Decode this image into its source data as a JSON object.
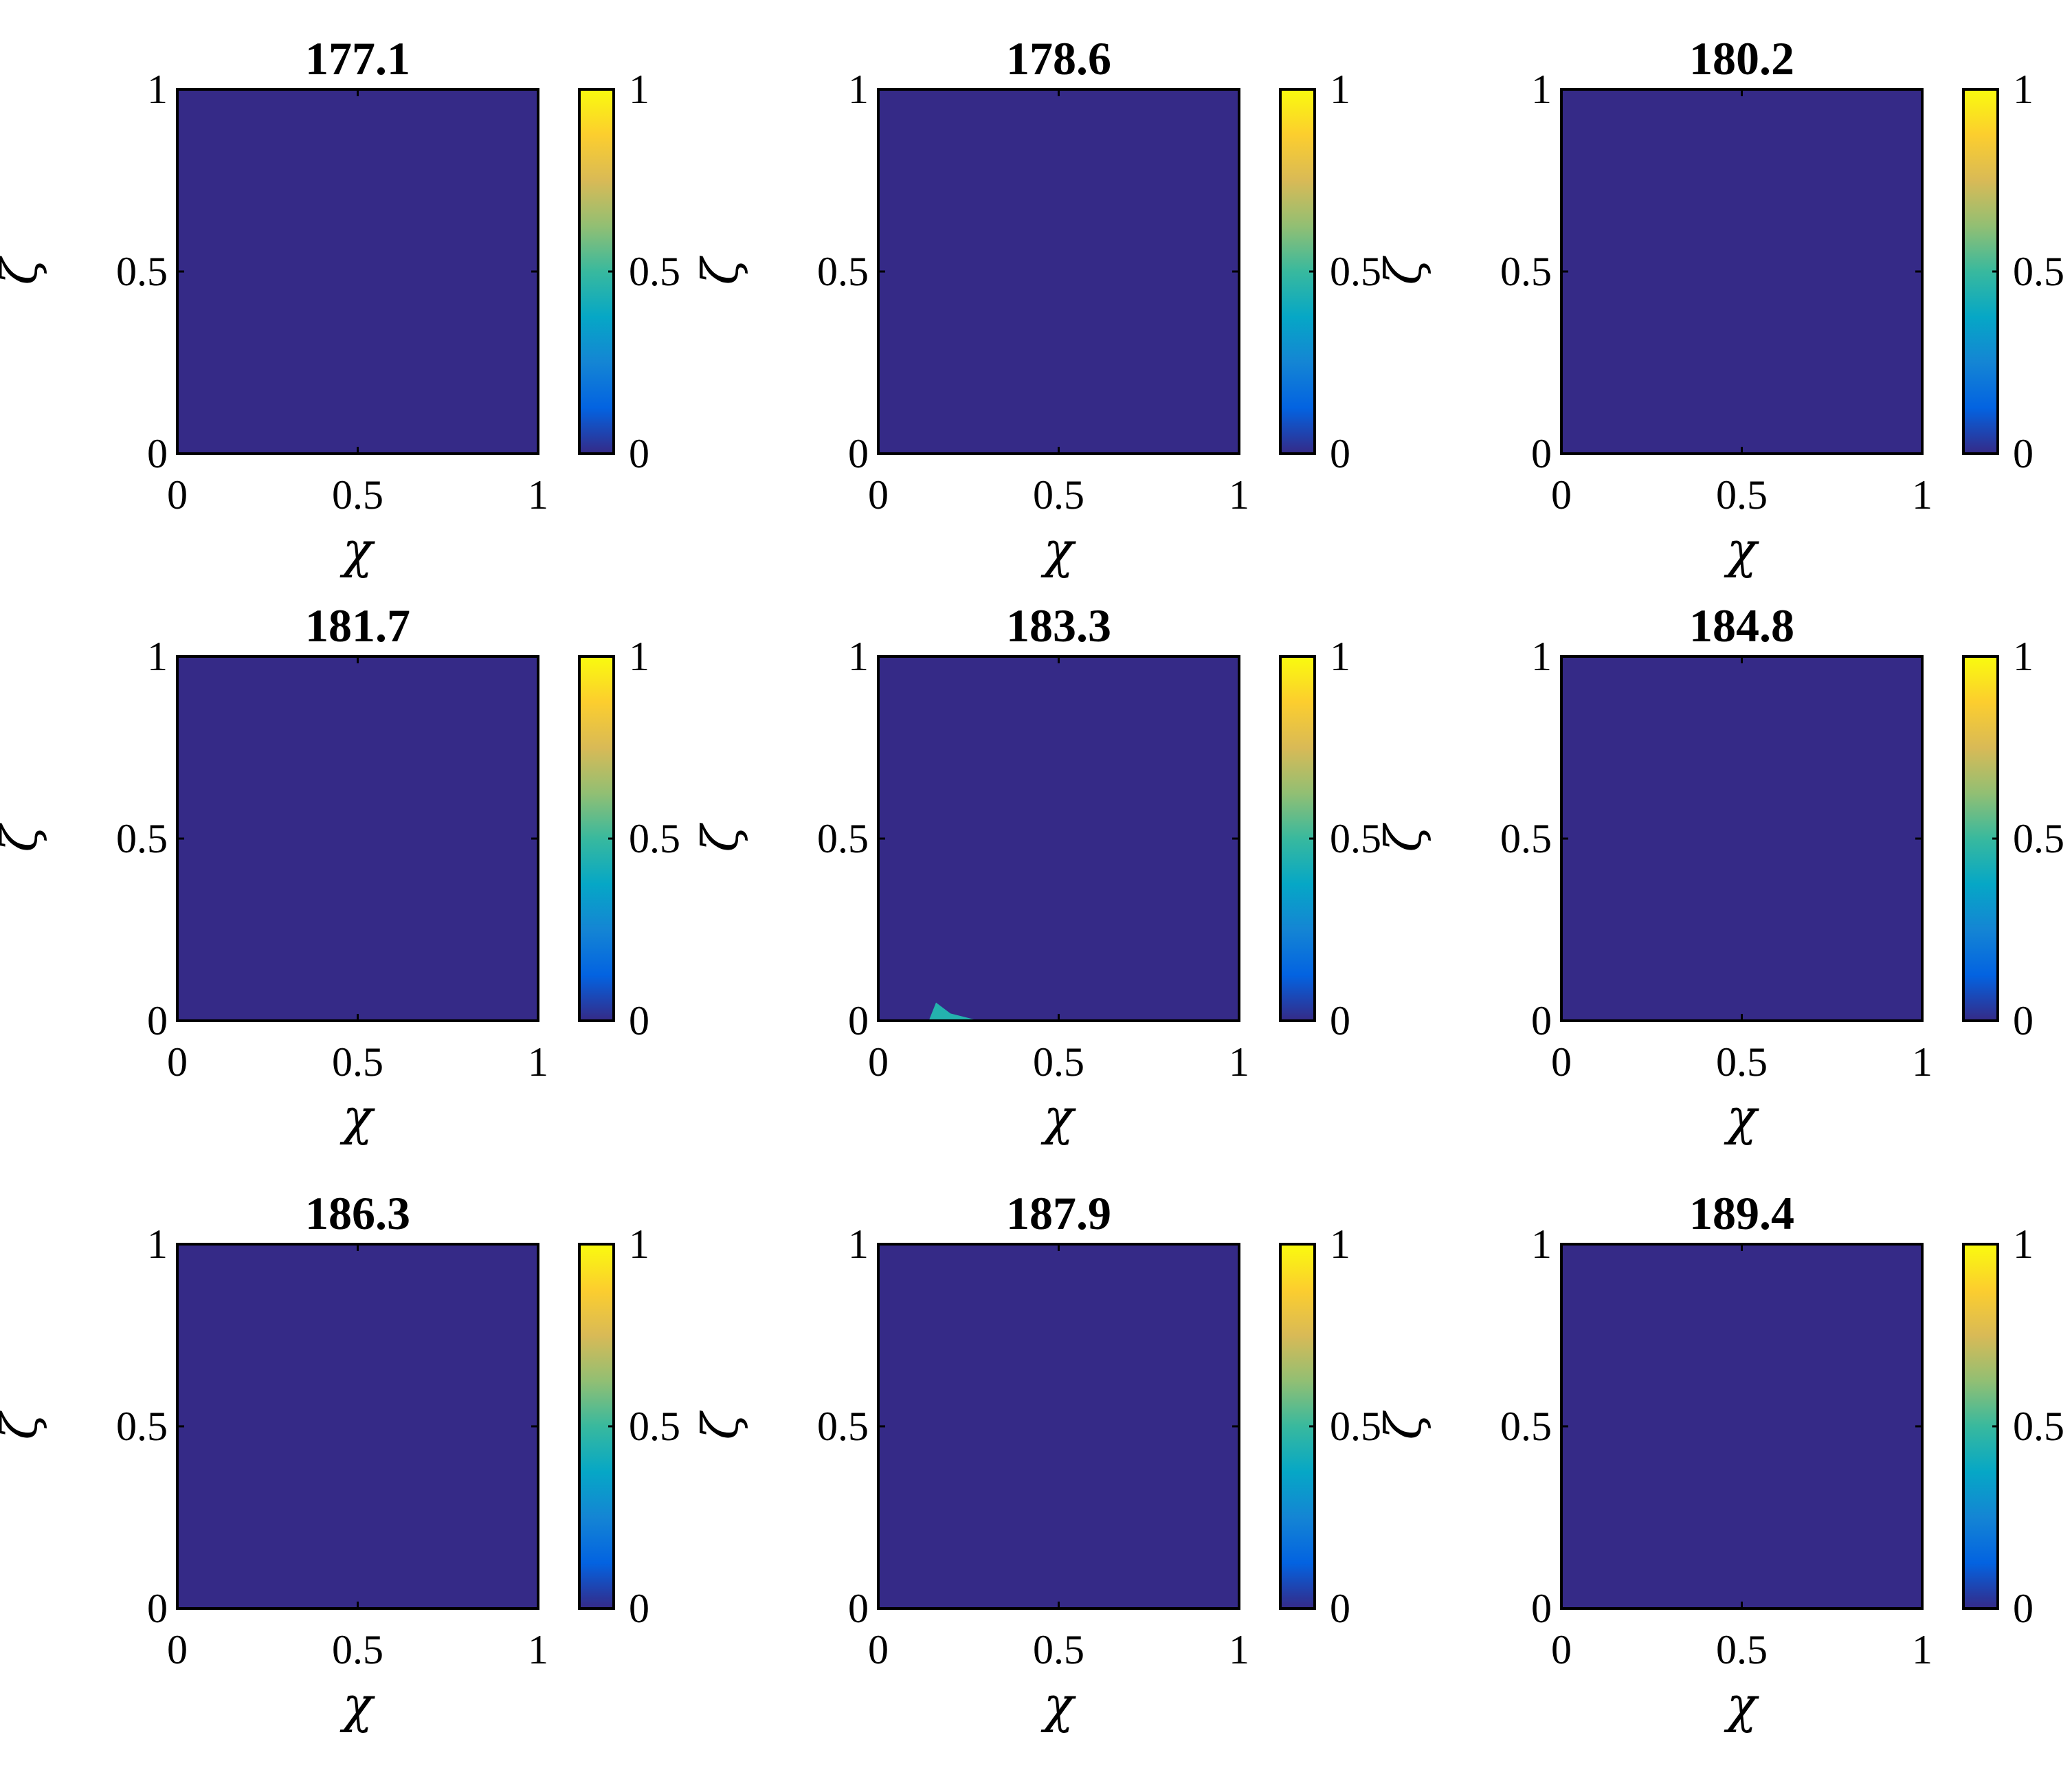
{
  "chart_data": {
    "type": "heatmap",
    "grid": [
      3,
      3
    ],
    "colormap": "parula",
    "colormap_stops": [
      "#352a87",
      "#0363e1",
      "#1485d4",
      "#06a7c6",
      "#38b99e",
      "#92bf73",
      "#d9ba56",
      "#fcce2e",
      "#f9fb0e"
    ],
    "xlabel": "χ",
    "ylabel": "ζ",
    "xlim": [
      0,
      1
    ],
    "ylim": [
      0,
      1
    ],
    "xticks": [
      "0",
      "0.5",
      "1"
    ],
    "yticks": [
      "0",
      "0.5",
      "1"
    ],
    "colorbar_ticks": [
      "0",
      "0.5",
      "1"
    ],
    "colorbar_range": [
      0,
      1
    ],
    "panels": [
      {
        "title": "177.1",
        "background_value": 0.0,
        "features": []
      },
      {
        "title": "178.6",
        "background_value": 0.0,
        "features": []
      },
      {
        "title": "180.2",
        "background_value": 0.0,
        "features": []
      },
      {
        "title": "181.7",
        "background_value": 0.0,
        "features": []
      },
      {
        "title": "183.3",
        "background_value": 0.0,
        "features": [
          {
            "shape": "peak",
            "value": 0.45,
            "points": [
              [
                0.14,
                0.0
              ],
              [
                0.16,
                0.05
              ],
              [
                0.2,
                0.02
              ],
              [
                0.28,
                0.0
              ]
            ]
          }
        ]
      },
      {
        "title": "184.8",
        "background_value": 0.0,
        "features": []
      },
      {
        "title": "186.3",
        "background_value": 0.0,
        "features": []
      },
      {
        "title": "187.9",
        "background_value": 0.0,
        "features": []
      },
      {
        "title": "189.4",
        "background_value": 0.0,
        "features": []
      }
    ]
  }
}
